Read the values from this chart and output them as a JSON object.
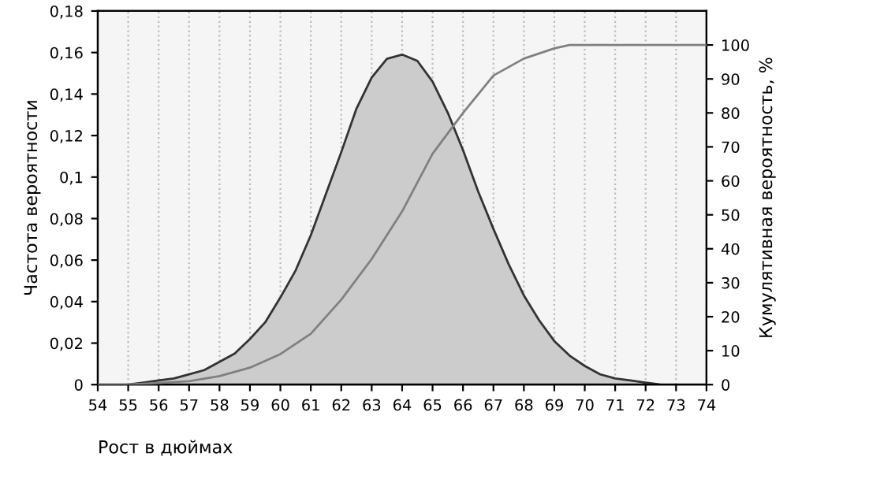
{
  "chart_data": {
    "type": "area",
    "xlabel": "Рост в дюймах",
    "ylabel": "Частота вероятности",
    "y2label": "Кумулятивная вероятность, %",
    "series": [
      {
        "color": "#cccccc",
        "x": [
          54,
          55,
          55.5,
          56,
          56.5,
          57,
          57.5,
          58,
          58.5,
          59,
          59.5,
          60,
          60.5,
          61,
          61.5,
          62,
          62.5,
          63,
          63.5,
          64,
          64.5,
          65,
          65.5,
          66,
          66.5,
          67,
          67.5,
          68,
          68.5,
          69,
          69.5,
          70,
          70.5,
          71,
          71.5,
          72,
          72.5,
          73,
          74
        ],
        "values": [
          0,
          0,
          0.001,
          0.002,
          0.003,
          0.005,
          0.007,
          0.011,
          0.015,
          0.022,
          0.03,
          0.042,
          0.055,
          0.072,
          0.092,
          0.112,
          0.133,
          0.148,
          0.157,
          0.159,
          0.156,
          0.146,
          0.131,
          0.113,
          0.093,
          0.075,
          0.058,
          0.043,
          0.031,
          0.021,
          0.014,
          0.009,
          0.005,
          0.003,
          0.002,
          0.001,
          0,
          0,
          0
        ]
      },
      {
        "type": "line",
        "axis": "y2",
        "color": "#808080",
        "x": [
          54,
          55,
          56,
          57,
          58,
          59,
          60,
          61,
          62,
          63,
          64,
          65,
          66,
          67,
          68,
          69,
          69.5,
          74
        ],
        "values": [
          0,
          0,
          0.5,
          1,
          2.5,
          5,
          9,
          15,
          25,
          37,
          51,
          68,
          80,
          91,
          96,
          99,
          100,
          100
        ]
      }
    ],
    "xlim": [
      54,
      74
    ],
    "xticks": [
      54,
      55,
      56,
      57,
      58,
      59,
      60,
      61,
      62,
      63,
      64,
      65,
      66,
      67,
      68,
      69,
      70,
      71,
      72,
      73,
      74
    ],
    "ylim": [
      0,
      0.18
    ],
    "yticks": [
      0,
      {
        "value": 0.02,
        "label": "0,02"
      },
      {
        "value": 0.04,
        "label": "0,04"
      },
      {
        "value": 0.06,
        "label": "0,06"
      },
      {
        "value": 0.08,
        "label": "0,08"
      },
      {
        "value": 0.1,
        "label": "0,1"
      },
      {
        "value": 0.12,
        "label": "0,12"
      },
      {
        "value": 0.14,
        "label": "0,14"
      },
      {
        "value": 0.16,
        "label": "0,16"
      },
      {
        "value": 0.18,
        "label": "0,18"
      }
    ],
    "y2lim": [
      0,
      110
    ],
    "y2ticks": [
      0,
      10,
      20,
      30,
      40,
      50,
      60,
      70,
      80,
      90,
      100
    ],
    "grid": "x",
    "legend": false
  }
}
